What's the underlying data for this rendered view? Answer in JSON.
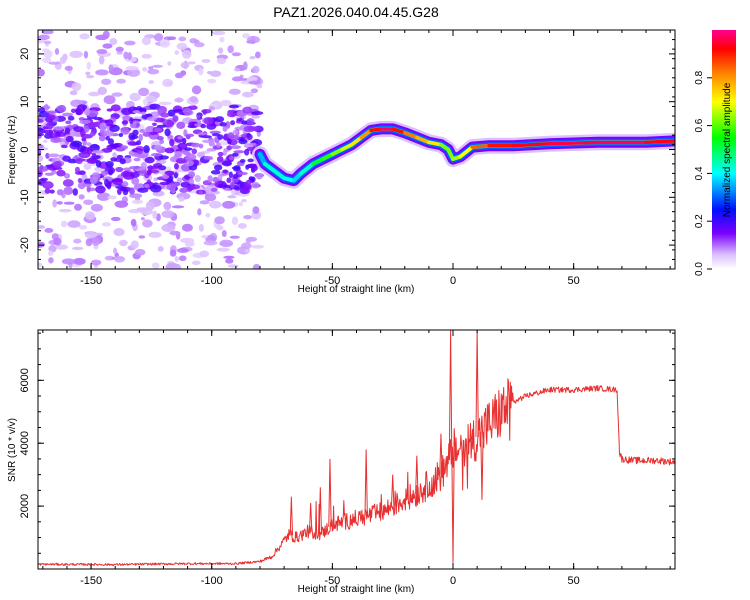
{
  "title": "PAZ1.2026.040.04.45.G28",
  "colors": {
    "snr_line": "#e83030",
    "axis": "#000000",
    "background": "#ffffff"
  },
  "chart_data": [
    {
      "type": "heatmap",
      "name": "spectrogram",
      "xlabel": "Height of straight line (km)",
      "ylabel": "Frequency (Hz)",
      "xlim": [
        -172,
        92
      ],
      "ylim": [
        -25,
        25
      ],
      "x_ticks": [
        -150,
        -100,
        -50,
        0,
        50
      ],
      "y_ticks": [
        -20,
        -10,
        0,
        10,
        20
      ],
      "colorbar": {
        "label": "Normalized spectral amplitude",
        "range": [
          0,
          1
        ],
        "ticks": [
          0.0,
          0.2,
          0.4,
          0.6,
          0.8
        ],
        "tick_labels": [
          "0.0",
          "0.2",
          "0.4",
          "0.6",
          "0.8"
        ]
      },
      "ridge": {
        "x": [
          -80,
          -78,
          -74,
          -70,
          -66,
          -63,
          -58,
          -54,
          -50,
          -46,
          -42,
          -38,
          -34,
          -30,
          -25,
          -20,
          -15,
          -10,
          -5,
          -2,
          0,
          3,
          8,
          15,
          25,
          40,
          60,
          80,
          92
        ],
        "y": [
          -1,
          -3,
          -4.5,
          -6,
          -6.5,
          -5,
          -3,
          -2,
          -1,
          0,
          1,
          2.5,
          4,
          4.3,
          4.3,
          3.5,
          2.5,
          1.5,
          1,
          0,
          -2,
          -1.5,
          0.5,
          0.8,
          0.8,
          1.2,
          1.5,
          1.5,
          1.8
        ],
        "amplitude": [
          0.3,
          0.4,
          0.45,
          0.4,
          0.4,
          0.35,
          0.5,
          0.55,
          0.6,
          0.65,
          0.7,
          0.75,
          0.85,
          0.97,
          0.97,
          0.85,
          0.8,
          0.75,
          0.7,
          0.55,
          0.7,
          0.6,
          0.8,
          0.9,
          0.92,
          0.95,
          0.97,
          0.97,
          0.9
        ]
      },
      "noise_region": {
        "x_range": [
          -172,
          -80
        ],
        "y_range": [
          -25,
          25
        ],
        "core_y_range": [
          -9,
          9
        ]
      }
    },
    {
      "type": "line",
      "name": "snr",
      "xlabel": "Height of straight line (km)",
      "ylabel": "SNR (10 * v/v)",
      "xlim": [
        -172,
        92
      ],
      "ylim": [
        0,
        7600
      ],
      "x_ticks": [
        -150,
        -100,
        -50,
        0,
        50
      ],
      "y_ticks": [
        2000,
        4000,
        6000
      ],
      "color": "#e83030",
      "envelope": {
        "x": [
          -172,
          -140,
          -110,
          -90,
          -80,
          -75,
          -72,
          -68,
          -65,
          -60,
          -55,
          -50,
          -45,
          -40,
          -35,
          -30,
          -25,
          -20,
          -15,
          -10,
          -5,
          -2,
          0,
          2,
          5,
          10,
          15,
          20,
          25,
          30,
          35,
          40,
          50,
          60,
          68,
          69,
          70,
          75,
          80,
          85,
          92
        ],
        "y": [
          150,
          140,
          170,
          170,
          240,
          400,
          700,
          1100,
          1000,
          1200,
          1100,
          1400,
          1500,
          1600,
          1700,
          1800,
          2000,
          2200,
          2400,
          2700,
          3000,
          3400,
          3800,
          3800,
          4000,
          4200,
          4600,
          5000,
          5300,
          5500,
          5600,
          5700,
          5700,
          5750,
          5700,
          3700,
          3500,
          3450,
          3450,
          3450,
          3400
        ]
      },
      "spikes": [
        {
          "x": -67,
          "y": 2300
        },
        {
          "x": -59,
          "y": 2100
        },
        {
          "x": -55,
          "y": 2600
        },
        {
          "x": -51,
          "y": 3500
        },
        {
          "x": -36,
          "y": 3800
        },
        {
          "x": -25,
          "y": 3000
        },
        {
          "x": -15,
          "y": 3600
        },
        {
          "x": -5,
          "y": 4300
        },
        {
          "x": -1,
          "y": 7600
        },
        {
          "x": 0,
          "y": 200
        },
        {
          "x": 8,
          "y": 4300
        },
        {
          "x": 10,
          "y": 7600
        },
        {
          "x": 12,
          "y": 2200
        }
      ]
    }
  ]
}
